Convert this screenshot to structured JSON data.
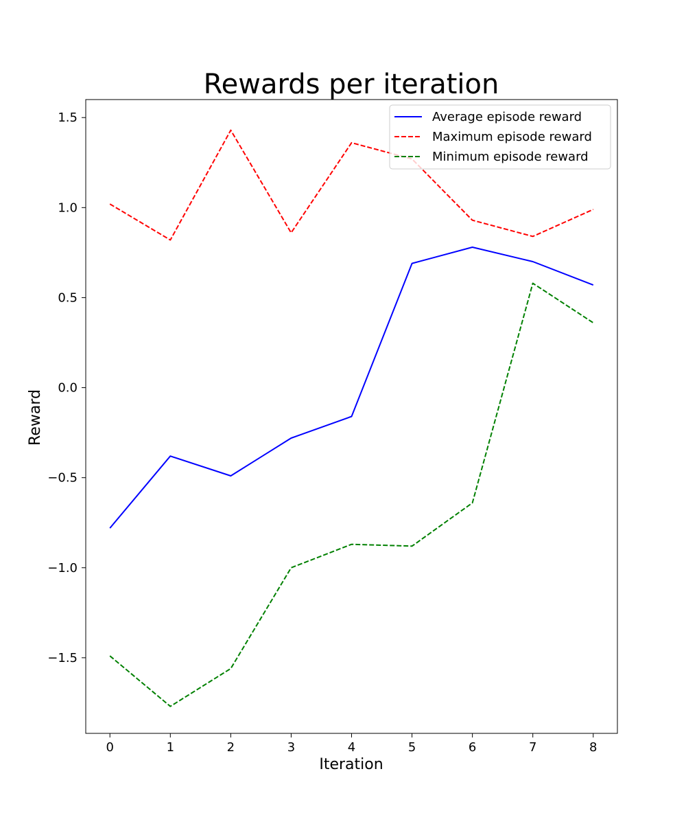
{
  "chart_data": {
    "type": "line",
    "title": "Rewards per iteration",
    "xlabel": "Iteration",
    "ylabel": "Reward",
    "x": [
      0,
      1,
      2,
      3,
      4,
      5,
      6,
      7,
      8
    ],
    "xlim": [
      -0.4,
      8.4
    ],
    "ylim": [
      -1.92,
      1.6
    ],
    "xticks": [
      0,
      1,
      2,
      3,
      4,
      5,
      6,
      7,
      8
    ],
    "xtick_labels": [
      "0",
      "1",
      "2",
      "3",
      "4",
      "5",
      "6",
      "7",
      "8"
    ],
    "yticks": [
      1.5,
      1.0,
      0.5,
      0.0,
      -0.5,
      -1.0,
      -1.5
    ],
    "ytick_labels": [
      "1.5",
      "1.0",
      "0.5",
      "0.0",
      "−0.5",
      "−1.0",
      "−1.5"
    ],
    "grid": false,
    "legend_position": "top-right",
    "series": [
      {
        "name": "Average episode reward",
        "color": "#0000ff",
        "style": "solid",
        "values": [
          -0.78,
          -0.38,
          -0.49,
          -0.28,
          -0.16,
          0.69,
          0.78,
          0.7,
          0.57
        ]
      },
      {
        "name": "Maximum episode reward",
        "color": "#ff0000",
        "style": "dashed",
        "values": [
          1.02,
          0.82,
          1.43,
          0.86,
          1.36,
          1.27,
          0.93,
          0.84,
          0.99
        ]
      },
      {
        "name": "Minimum episode reward",
        "color": "#008000",
        "style": "dashed",
        "values": [
          -1.49,
          -1.77,
          -1.56,
          -1.0,
          -0.87,
          -0.88,
          -0.64,
          0.58,
          0.36
        ]
      }
    ]
  }
}
